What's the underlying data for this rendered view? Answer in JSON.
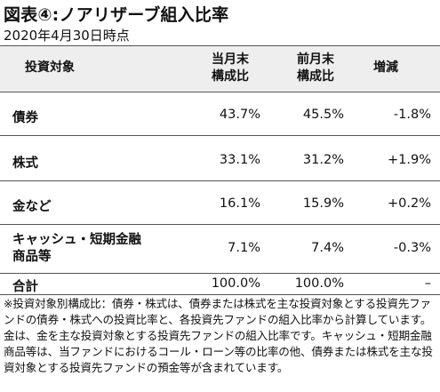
{
  "title": "図表④:ノアリザーブ組入比率",
  "date": "2020年4月30日時点",
  "table": {
    "headers": {
      "category": "投資対象",
      "current_line1": "当月末",
      "current_line2": "構成比",
      "previous_line1": "前月末",
      "previous_line2": "構成比",
      "change": "増減"
    },
    "rows": [
      {
        "label_line1": "債券",
        "label_line2": "",
        "current": "43.7%",
        "previous": "45.5%",
        "change": "-1.8%"
      },
      {
        "label_line1": "株式",
        "label_line2": "",
        "current": "33.1%",
        "previous": "31.2%",
        "change": "+1.9%"
      },
      {
        "label_line1": "金など",
        "label_line2": "",
        "current": "16.1%",
        "previous": "15.9%",
        "change": "+0.2%"
      },
      {
        "label_line1": "キャッシュ・短期金融",
        "label_line2": "商品等",
        "current": "7.1%",
        "previous": "7.4%",
        "change": "-0.3%"
      }
    ],
    "total": {
      "label": "合計",
      "current": "100.0%",
      "previous": "100.0%",
      "change": "–"
    }
  },
  "note": "※投資対象別構成比：債券・株式は、債券または株式を主な投資対象とする投資先ファンドの債券・株式への投資比率と、各投資先ファンドの組入比率から計算しています。金は、金を主な投資対象とする投資先ファンドの組入比率です。キャッシュ・短期金融商品等は、当ファンドにおけるコール・ローン等の比率の他、債券または株式を主な投資対象とする投資先ファンドの預金等が含まれています。"
}
